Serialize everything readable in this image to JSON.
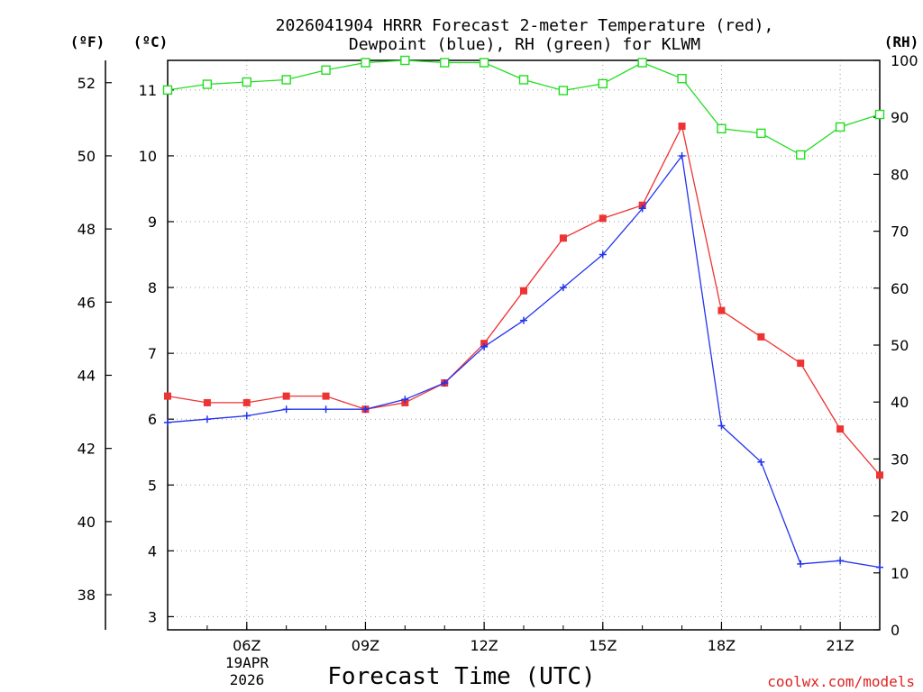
{
  "chart_data": {
    "type": "line",
    "title_line1": "2026041904 HRRR Forecast 2-meter Temperature (red),",
    "title_line2": "Dewpoint (blue), RH (green) for KLWM",
    "xlabel": "Forecast Time (UTC)",
    "date_label_line1": "19APR",
    "date_label_line2": "2026",
    "watermark": "coolwx.com/models",
    "unit_labels": {
      "fahrenheit": "(ºF)",
      "celsius": "(ºC)",
      "rh": "(RH)"
    },
    "x_hours": [
      4,
      5,
      6,
      7,
      8,
      9,
      10,
      11,
      12,
      13,
      14,
      15,
      16,
      17,
      18,
      19,
      20,
      21,
      22
    ],
    "x_tick_hours": [
      6,
      9,
      12,
      15,
      18,
      21
    ],
    "x_tick_labels": [
      "06Z",
      "09Z",
      "12Z",
      "15Z",
      "18Z",
      "21Z"
    ],
    "xlim": [
      4,
      22
    ],
    "celsius_axis": {
      "ylim": [
        2.8,
        11.45
      ],
      "ticks": [
        3,
        4,
        5,
        6,
        7,
        8,
        9,
        10,
        11
      ]
    },
    "fahrenheit_axis": {
      "ticks": [
        38,
        40,
        42,
        44,
        46,
        48,
        50,
        52
      ]
    },
    "rh_axis": {
      "ylim": [
        0,
        100
      ],
      "ticks": [
        0,
        10,
        20,
        30,
        40,
        50,
        60,
        70,
        80,
        90,
        100
      ]
    },
    "series": [
      {
        "name": "Temperature",
        "unit": "C",
        "color": "#ee3333",
        "marker": "filled-square",
        "values": [
          6.35,
          6.25,
          6.25,
          6.35,
          6.35,
          6.15,
          6.25,
          6.55,
          7.15,
          7.95,
          8.75,
          9.05,
          9.25,
          10.45,
          7.65,
          7.25,
          6.85,
          5.85,
          5.15
        ]
      },
      {
        "name": "Dewpoint",
        "unit": "C",
        "color": "#2233ee",
        "marker": "plus",
        "values": [
          5.95,
          6.0,
          6.05,
          6.15,
          6.15,
          6.15,
          6.3,
          6.55,
          7.1,
          7.5,
          8.0,
          8.5,
          9.2,
          10.0,
          5.9,
          5.35,
          3.8,
          3.85,
          3.75
        ]
      },
      {
        "name": "Relative Humidity",
        "unit": "%",
        "color": "#22dd22",
        "marker": "open-square",
        "values": [
          94.8,
          95.8,
          96.2,
          96.6,
          98.3,
          99.6,
          100,
          99.6,
          99.6,
          96.6,
          94.7,
          95.9,
          99.6,
          96.8,
          88.0,
          87.2,
          83.4,
          88.3,
          90.5
        ]
      }
    ]
  }
}
